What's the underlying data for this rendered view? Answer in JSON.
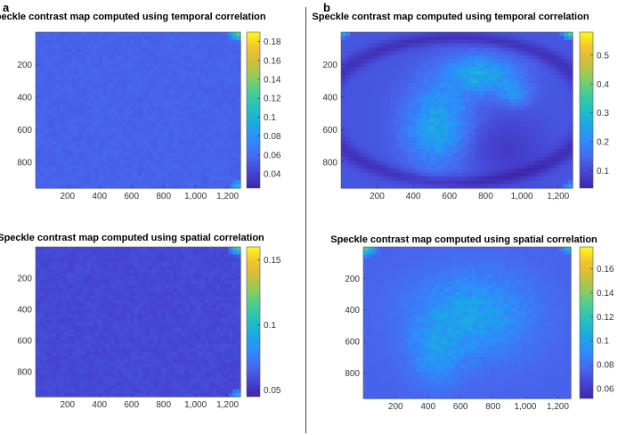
{
  "panel_labels": {
    "a": "a",
    "b": "b"
  },
  "colormap": [
    "#3e26a8",
    "#4544d2",
    "#4769f0",
    "#2f8afc",
    "#1ba7e6",
    "#20bfc4",
    "#42cc9a",
    "#85cd63",
    "#cbc03b",
    "#f5c22f",
    "#f9fb15"
  ],
  "chart_data": [
    {
      "type": "heatmap",
      "title": "Speckle contrast map computed using temporal correlation",
      "x_ticks": [
        200,
        400,
        600,
        800,
        1000,
        1200
      ],
      "x_tick_labels": [
        "200",
        "400",
        "600",
        "800",
        "1,000",
        "1,200"
      ],
      "y_ticks": [
        200,
        400,
        600,
        800
      ],
      "y_tick_labels": [
        "200",
        "400",
        "600",
        "800"
      ],
      "xlim": [
        1,
        1280
      ],
      "ylim": [
        1,
        960
      ],
      "y_reversed": true,
      "color_range": [
        0.025,
        0.19
      ],
      "colorbar_ticks": [
        0.04,
        0.06,
        0.08,
        0.1,
        0.12,
        0.14,
        0.16,
        0.18
      ],
      "colorbar_tick_labels": [
        "0.04",
        "0.06",
        "0.08",
        "0.1",
        "0.12",
        "0.14",
        "0.16",
        "0.18"
      ],
      "pattern": "uniform-low",
      "base_value": 0.055,
      "corner_value": 0.15
    },
    {
      "type": "heatmap",
      "title": "Speckle contrast map computed using spatial correlation",
      "x_ticks": [
        200,
        400,
        600,
        800,
        1000,
        1200
      ],
      "x_tick_labels": [
        "200",
        "400",
        "600",
        "800",
        "1,000",
        "1,200"
      ],
      "y_ticks": [
        200,
        400,
        600,
        800
      ],
      "y_tick_labels": [
        "200",
        "400",
        "600",
        "800"
      ],
      "xlim": [
        1,
        1280
      ],
      "ylim": [
        1,
        960
      ],
      "y_reversed": true,
      "color_range": [
        0.045,
        0.16
      ],
      "colorbar_ticks": [
        0.05,
        0.1,
        0.15
      ],
      "colorbar_tick_labels": [
        "0.05",
        "0.1",
        "0.15"
      ],
      "pattern": "uniform-low",
      "base_value": 0.058,
      "corner_value": 0.13
    },
    {
      "type": "heatmap",
      "title": "Speckle contrast map computed using temporal correlation",
      "x_ticks": [
        200,
        400,
        600,
        800,
        1000,
        1200
      ],
      "x_tick_labels": [
        "200",
        "400",
        "600",
        "800",
        "1,000",
        "1,200"
      ],
      "y_ticks": [
        200,
        400,
        600,
        800
      ],
      "y_tick_labels": [
        "200",
        "400",
        "600",
        "800"
      ],
      "xlim": [
        1,
        1280
      ],
      "ylim": [
        1,
        960
      ],
      "y_reversed": true,
      "color_range": [
        0.04,
        0.58
      ],
      "colorbar_ticks": [
        0.1,
        0.2,
        0.3,
        0.4,
        0.5
      ],
      "colorbar_tick_labels": [
        "0.1",
        "0.2",
        "0.3",
        "0.4",
        "0.5"
      ],
      "pattern": "crescent",
      "base_value": 0.12,
      "ring_value": 0.06,
      "blob_value": 0.26,
      "corner_value": 0.45
    },
    {
      "type": "heatmap",
      "title": "Speckle contrast map computed using spatial correlation",
      "x_ticks": [
        200,
        400,
        600,
        800,
        1000,
        1200
      ],
      "x_tick_labels": [
        "200",
        "400",
        "600",
        "800",
        "1,000",
        "1,200"
      ],
      "y_ticks": [
        200,
        400,
        600,
        800
      ],
      "y_tick_labels": [
        "200",
        "400",
        "600",
        "800"
      ],
      "xlim": [
        1,
        1280
      ],
      "ylim": [
        1,
        960
      ],
      "y_reversed": true,
      "color_range": [
        0.052,
        0.178
      ],
      "colorbar_ticks": [
        0.06,
        0.08,
        0.1,
        0.12,
        0.14,
        0.16
      ],
      "colorbar_tick_labels": [
        "0.06",
        "0.08",
        "0.1",
        "0.12",
        "0.14",
        "0.16"
      ],
      "pattern": "wide-blob",
      "base_value": 0.075,
      "blob_value": 0.1,
      "corner_value": 0.14
    }
  ]
}
